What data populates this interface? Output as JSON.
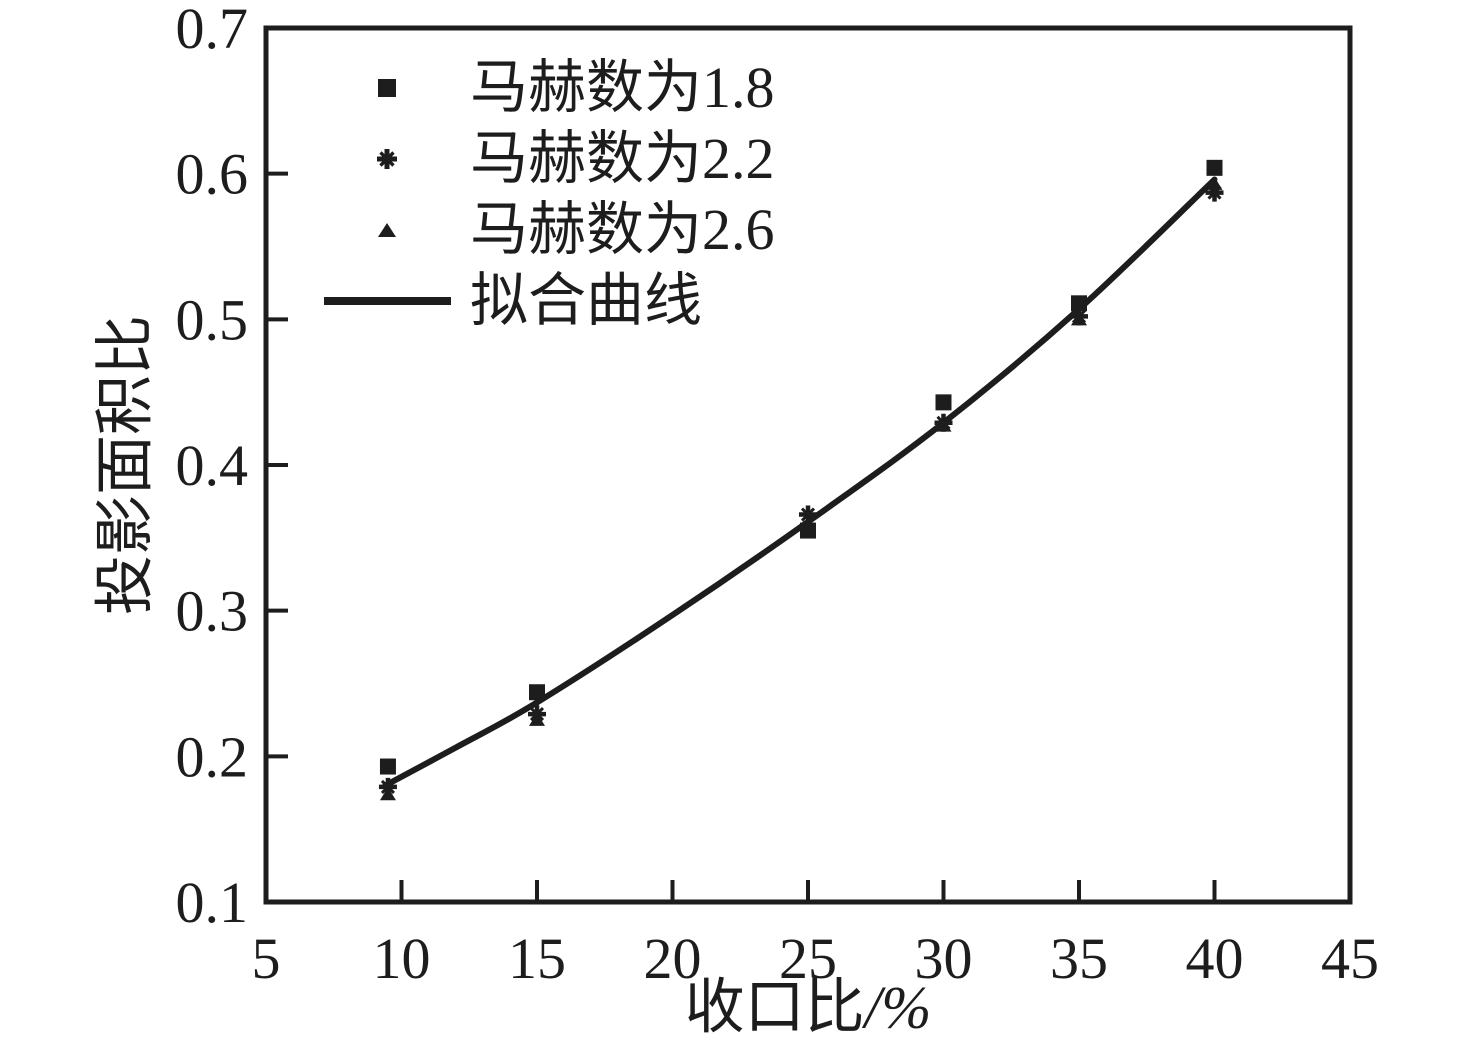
{
  "figure": {
    "background": "#ffffff",
    "ink_color": "#1d1d1d"
  },
  "chart_data": {
    "type": "scatter",
    "title": "",
    "xlabel_prefix": "收口比",
    "xlabel_suffix": "/%",
    "ylabel": "投影面积比",
    "xlim": [
      5,
      45
    ],
    "ylim": [
      0.1,
      0.7
    ],
    "x_ticks": [
      "5",
      "10",
      "15",
      "20",
      "25",
      "30",
      "35",
      "40",
      "45"
    ],
    "y_ticks": [
      "0.1",
      "0.2",
      "0.3",
      "0.4",
      "0.5",
      "0.6",
      "0.7"
    ],
    "grid": false,
    "legend_position": "upper-left-inside",
    "series": [
      {
        "name": "马赫数为1.8",
        "marker": "square",
        "points": [
          [
            9.5,
            0.193
          ],
          [
            15,
            0.244
          ],
          [
            25,
            0.355
          ],
          [
            30,
            0.443
          ],
          [
            35,
            0.511
          ],
          [
            40,
            0.604
          ]
        ]
      },
      {
        "name": "马赫数为2.2",
        "marker": "star",
        "points": [
          [
            9.5,
            0.179
          ],
          [
            15,
            0.229
          ],
          [
            25,
            0.366
          ],
          [
            30,
            0.429
          ],
          [
            35,
            0.502
          ],
          [
            40,
            0.587
          ]
        ]
      },
      {
        "name": "马赫数为2.6",
        "marker": "triangle",
        "points": [
          [
            9.5,
            0.174
          ],
          [
            15,
            0.225
          ],
          [
            25,
            0.357
          ],
          [
            30,
            0.427
          ],
          [
            35,
            0.5
          ],
          [
            40,
            0.593
          ]
        ]
      },
      {
        "name": "拟合曲线",
        "marker": "line",
        "points": [
          [
            9.4,
            0.18
          ],
          [
            12,
            0.206
          ],
          [
            15,
            0.237
          ],
          [
            20,
            0.297
          ],
          [
            25,
            0.361
          ],
          [
            30,
            0.429
          ],
          [
            35,
            0.507
          ],
          [
            40,
            0.596
          ]
        ]
      }
    ]
  }
}
